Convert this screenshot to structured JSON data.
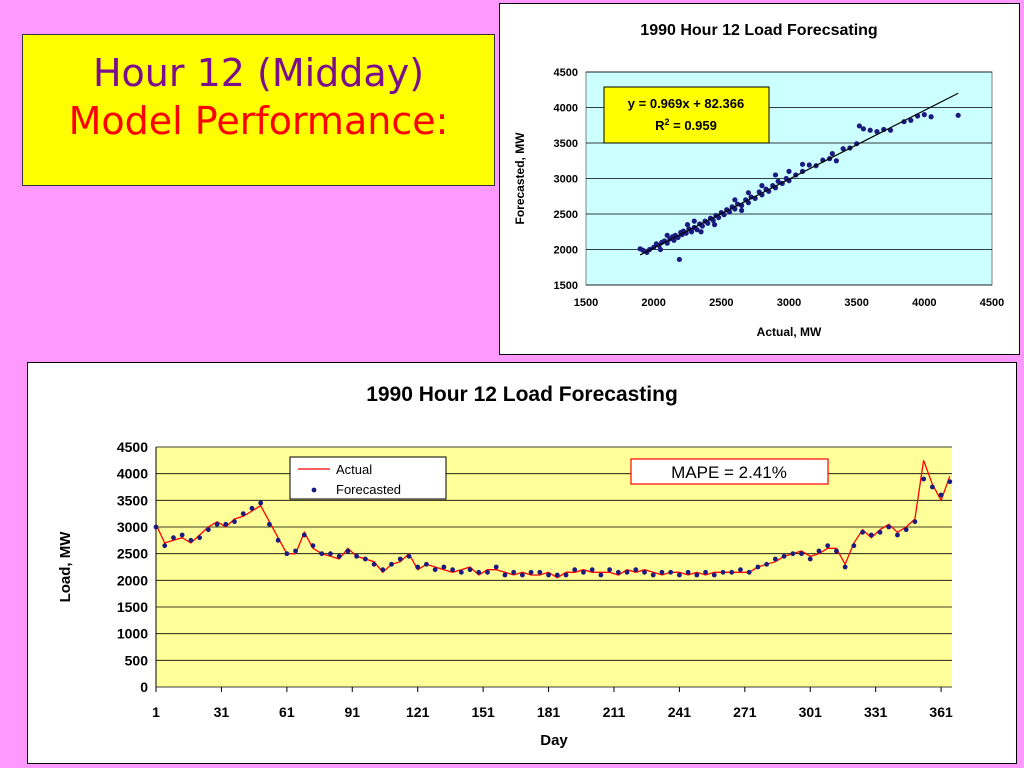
{
  "slide": {
    "title_line1": "Hour 12 (Midday)",
    "title_line2": "Model Performance:"
  },
  "colors": {
    "background": "#FF99FF",
    "title_box": "#FFFF00",
    "title_line1": "#7A0E8C",
    "title_line2": "#FF0000",
    "scatter_plot_bg": "#CCFFFF",
    "line_plot_bg": "#FFFF99",
    "point": "#1A1A80",
    "actual_line": "#FF0000",
    "forecast_marker": "#1A1A80"
  },
  "chart_data": [
    {
      "type": "scatter",
      "title": "1990 Hour 12 Load Forecsating",
      "xlabel": "Actual, MW",
      "ylabel": "Forecasted, MW",
      "xlim": [
        1500,
        4500
      ],
      "ylim": [
        1500,
        4500
      ],
      "xticks": [
        1500,
        2000,
        2500,
        3000,
        3500,
        4000,
        4500
      ],
      "yticks": [
        1500,
        2000,
        2500,
        3000,
        3500,
        4000,
        4500
      ],
      "grid": true,
      "trendline": {
        "slope": 0.969,
        "intercept": 82.366,
        "x_range": [
          1900,
          4250
        ]
      },
      "annotation": {
        "equation": "y = 0.969x + 82.366",
        "r2_prefix": "R",
        "r2_sup": "2",
        "r2_value": " = 0.959"
      },
      "points": [
        [
          1900,
          2010
        ],
        [
          1920,
          1990
        ],
        [
          1950,
          1960
        ],
        [
          1970,
          2000
        ],
        [
          2000,
          2030
        ],
        [
          2020,
          2080
        ],
        [
          2040,
          2060
        ],
        [
          2060,
          2100
        ],
        [
          2080,
          2120
        ],
        [
          2100,
          2090
        ],
        [
          2120,
          2150
        ],
        [
          2140,
          2180
        ],
        [
          2150,
          2130
        ],
        [
          2160,
          2200
        ],
        [
          2180,
          2170
        ],
        [
          2190,
          1860
        ],
        [
          2200,
          2240
        ],
        [
          2210,
          2210
        ],
        [
          2220,
          2260
        ],
        [
          2240,
          2230
        ],
        [
          2260,
          2290
        ],
        [
          2280,
          2250
        ],
        [
          2300,
          2310
        ],
        [
          2320,
          2280
        ],
        [
          2340,
          2360
        ],
        [
          2360,
          2330
        ],
        [
          2380,
          2400
        ],
        [
          2400,
          2370
        ],
        [
          2420,
          2440
        ],
        [
          2440,
          2410
        ],
        [
          2460,
          2480
        ],
        [
          2480,
          2450
        ],
        [
          2500,
          2520
        ],
        [
          2520,
          2490
        ],
        [
          2540,
          2560
        ],
        [
          2560,
          2530
        ],
        [
          2580,
          2600
        ],
        [
          2600,
          2570
        ],
        [
          2620,
          2640
        ],
        [
          2650,
          2620
        ],
        [
          2680,
          2700
        ],
        [
          2700,
          2660
        ],
        [
          2720,
          2740
        ],
        [
          2750,
          2720
        ],
        [
          2780,
          2810
        ],
        [
          2800,
          2770
        ],
        [
          2830,
          2850
        ],
        [
          2850,
          2820
        ],
        [
          2880,
          2900
        ],
        [
          2900,
          2870
        ],
        [
          2920,
          2960
        ],
        [
          2950,
          2930
        ],
        [
          2980,
          3000
        ],
        [
          3000,
          2970
        ],
        [
          3050,
          3050
        ],
        [
          3100,
          3100
        ],
        [
          3150,
          3190
        ],
        [
          3200,
          3180
        ],
        [
          3250,
          3260
        ],
        [
          3300,
          3280
        ],
        [
          3320,
          3350
        ],
        [
          3350,
          3250
        ],
        [
          3400,
          3420
        ],
        [
          3450,
          3430
        ],
        [
          3500,
          3490
        ],
        [
          3520,
          3740
        ],
        [
          3550,
          3700
        ],
        [
          3600,
          3680
        ],
        [
          3650,
          3660
        ],
        [
          3700,
          3690
        ],
        [
          3750,
          3680
        ],
        [
          3850,
          3800
        ],
        [
          3900,
          3820
        ],
        [
          3950,
          3880
        ],
        [
          4000,
          3900
        ],
        [
          4050,
          3870
        ],
        [
          4250,
          3890
        ],
        [
          2300,
          2400
        ],
        [
          2450,
          2350
        ],
        [
          2600,
          2700
        ],
        [
          2700,
          2800
        ],
        [
          2900,
          3050
        ],
        [
          3000,
          3100
        ],
        [
          2800,
          2900
        ],
        [
          2650,
          2550
        ],
        [
          2350,
          2250
        ],
        [
          2250,
          2350
        ],
        [
          2100,
          2200
        ],
        [
          2050,
          2000
        ],
        [
          3100,
          3200
        ]
      ]
    },
    {
      "type": "line",
      "title": "1990 Hour 12 Load Forecasting",
      "xlabel": "Day",
      "ylabel": "Load, MW",
      "xlim": [
        1,
        366
      ],
      "ylim": [
        0,
        4500
      ],
      "xticks": [
        1,
        31,
        61,
        91,
        121,
        151,
        181,
        211,
        241,
        271,
        301,
        331,
        361
      ],
      "yticks": [
        0,
        500,
        1000,
        1500,
        2000,
        2500,
        3000,
        3500,
        4000,
        4500
      ],
      "grid": true,
      "legend_position": "top-center",
      "annotation": "MAPE = 2.41%",
      "series": [
        {
          "name": "Actual",
          "x": [
            1,
            5,
            9,
            13,
            17,
            21,
            25,
            29,
            33,
            37,
            41,
            45,
            49,
            53,
            57,
            61,
            65,
            69,
            73,
            77,
            81,
            85,
            89,
            93,
            97,
            101,
            105,
            109,
            113,
            117,
            121,
            125,
            129,
            133,
            137,
            141,
            145,
            149,
            153,
            157,
            161,
            165,
            169,
            173,
            177,
            181,
            185,
            189,
            193,
            197,
            201,
            205,
            209,
            213,
            217,
            221,
            225,
            229,
            233,
            237,
            241,
            245,
            249,
            253,
            257,
            261,
            265,
            269,
            273,
            277,
            281,
            285,
            289,
            293,
            297,
            301,
            305,
            309,
            313,
            317,
            321,
            325,
            329,
            333,
            337,
            341,
            345,
            349,
            353,
            357,
            361,
            365
          ],
          "values": [
            3050,
            2700,
            2750,
            2800,
            2700,
            2850,
            3000,
            3100,
            3000,
            3150,
            3200,
            3300,
            3400,
            3100,
            2800,
            2500,
            2500,
            2900,
            2600,
            2500,
            2450,
            2400,
            2600,
            2450,
            2400,
            2350,
            2150,
            2300,
            2350,
            2500,
            2200,
            2300,
            2250,
            2200,
            2150,
            2200,
            2250,
            2100,
            2200,
            2200,
            2150,
            2100,
            2150,
            2100,
            2100,
            2150,
            2050,
            2150,
            2150,
            2200,
            2150,
            2150,
            2150,
            2100,
            2200,
            2150,
            2200,
            2150,
            2100,
            2150,
            2150,
            2100,
            2150,
            2100,
            2150,
            2150,
            2150,
            2150,
            2150,
            2250,
            2300,
            2350,
            2450,
            2500,
            2550,
            2450,
            2500,
            2600,
            2600,
            2300,
            2700,
            2950,
            2800,
            2950,
            3050,
            2900,
            3000,
            3150,
            4250,
            3800,
            3500,
            3950
          ]
        },
        {
          "name": "Forecasted",
          "x": [
            1,
            5,
            9,
            13,
            17,
            21,
            25,
            29,
            33,
            37,
            41,
            45,
            49,
            53,
            57,
            61,
            65,
            69,
            73,
            77,
            81,
            85,
            89,
            93,
            97,
            101,
            105,
            109,
            113,
            117,
            121,
            125,
            129,
            133,
            137,
            141,
            145,
            149,
            153,
            157,
            161,
            165,
            169,
            173,
            177,
            181,
            185,
            189,
            193,
            197,
            201,
            205,
            209,
            213,
            217,
            221,
            225,
            229,
            233,
            237,
            241,
            245,
            249,
            253,
            257,
            261,
            265,
            269,
            273,
            277,
            281,
            285,
            289,
            293,
            297,
            301,
            305,
            309,
            313,
            317,
            321,
            325,
            329,
            333,
            337,
            341,
            345,
            349,
            353,
            357,
            361,
            365
          ],
          "values": [
            3000,
            2650,
            2800,
            2850,
            2750,
            2800,
            2950,
            3050,
            3050,
            3100,
            3250,
            3350,
            3450,
            3050,
            2750,
            2500,
            2550,
            2850,
            2650,
            2500,
            2500,
            2450,
            2550,
            2450,
            2400,
            2300,
            2200,
            2300,
            2400,
            2450,
            2250,
            2300,
            2200,
            2250,
            2200,
            2150,
            2200,
            2150,
            2150,
            2250,
            2100,
            2150,
            2100,
            2150,
            2150,
            2100,
            2100,
            2100,
            2200,
            2150,
            2200,
            2100,
            2200,
            2150,
            2150,
            2200,
            2150,
            2100,
            2150,
            2150,
            2100,
            2150,
            2100,
            2150,
            2100,
            2150,
            2150,
            2200,
            2150,
            2250,
            2300,
            2400,
            2450,
            2500,
            2500,
            2400,
            2550,
            2650,
            2550,
            2250,
            2650,
            2900,
            2850,
            2900,
            3000,
            2850,
            2950,
            3100,
            3900,
            3750,
            3600,
            3850
          ]
        }
      ]
    }
  ]
}
